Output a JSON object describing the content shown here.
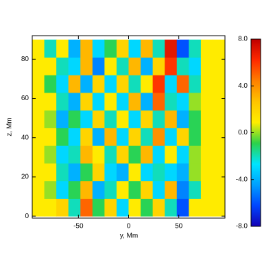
{
  "chart_data": {
    "type": "heatmap",
    "x_label": "y, Mm",
    "y_label": "z, Mm",
    "x": [
      -90,
      -78,
      -66,
      -54,
      -42,
      -30,
      -18,
      -6,
      6,
      18,
      30,
      42,
      54,
      66,
      78,
      90
    ],
    "y": [
      4.5,
      13.5,
      22.5,
      31.5,
      40.5,
      49.5,
      58.5,
      67.5,
      76.5,
      85.5
    ],
    "values": [
      [
        1,
        1,
        2,
        -2,
        5,
        -1,
        2,
        -3,
        1,
        -1,
        2,
        -2,
        -6,
        1,
        1,
        1
      ],
      [
        1,
        0,
        -3,
        -1,
        3,
        -4,
        -2,
        1,
        -1,
        2,
        -3,
        3,
        -5,
        -2,
        1,
        1
      ],
      [
        1,
        1,
        -2,
        -4,
        -1,
        2,
        -3,
        -4,
        1,
        -3,
        -2,
        -3,
        -4,
        0,
        1,
        1
      ],
      [
        1,
        0,
        -3,
        -2,
        3,
        1,
        -2,
        2,
        -1,
        3,
        -3,
        1,
        -3,
        0,
        1,
        1
      ],
      [
        1,
        1,
        -1,
        -3,
        2,
        -4,
        3,
        -3,
        2,
        -2,
        4,
        -3,
        2,
        -1,
        1,
        1
      ],
      [
        1,
        0,
        -4,
        -1,
        -3,
        2,
        -2,
        1,
        -3,
        2,
        -2,
        3,
        -4,
        -1,
        1,
        1
      ],
      [
        1,
        1,
        -2,
        -4,
        2,
        -3,
        1,
        -3,
        3,
        -4,
        5,
        -2,
        -3,
        0,
        1,
        1
      ],
      [
        1,
        -1,
        -3,
        3,
        -4,
        2,
        -3,
        2,
        -2,
        1,
        6,
        -3,
        5,
        -2,
        1,
        1
      ],
      [
        1,
        1,
        -2,
        -3,
        3,
        -5,
        1,
        -2,
        3,
        -4,
        2,
        6,
        -2,
        -3,
        1,
        1
      ],
      [
        1,
        -2,
        1,
        -4,
        3,
        -3,
        -1,
        2,
        -3,
        3,
        -2,
        7,
        -6,
        -2,
        1,
        1
      ]
    ],
    "xlim": [
      -96,
      96
    ],
    "ylim": [
      -1,
      92
    ],
    "xticks": [
      -50,
      0,
      50
    ],
    "yticks": [
      0,
      20,
      40,
      60,
      80
    ],
    "clim": [
      -8,
      8
    ],
    "cticks": [
      {
        "value": 8,
        "label": "8.0"
      },
      {
        "value": 4,
        "label": "4.0"
      },
      {
        "value": 0,
        "label": "0.0"
      },
      {
        "value": -4,
        "label": "-4.0"
      },
      {
        "value": -8,
        "label": "-8.0"
      }
    ],
    "colorscale": [
      "#1400b4",
      "#0046ff",
      "#00a0ff",
      "#00e4ff",
      "#2cd24a",
      "#ffee00",
      "#ffc400",
      "#ff8000",
      "#ff2a00",
      "#c00000"
    ]
  }
}
